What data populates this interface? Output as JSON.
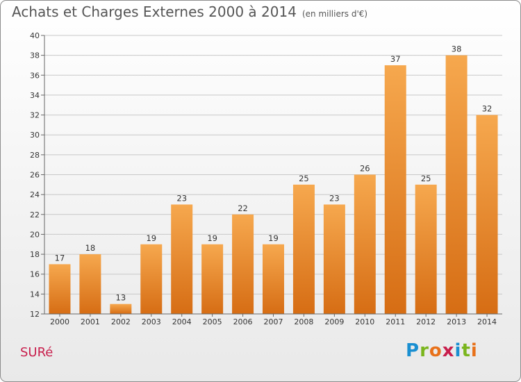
{
  "title": "Achats et Charges Externes 2000 à 2014",
  "subtitle": "(en milliers d'€)",
  "place": "SURé",
  "logo": [
    "P",
    "r",
    "o",
    "x",
    "i",
    "t",
    "i"
  ],
  "logo_colors": [
    "#1a8fd1",
    "#7ab51d",
    "#e8711a",
    "#c81e4c",
    "#1a8fd1",
    "#7ab51d",
    "#e8711a"
  ],
  "colors": {
    "bar_light": "#f6a84e",
    "bar_dark": "#d66d14",
    "grid": "#c8c8c8",
    "place": "#c81e4c"
  },
  "chart_data": {
    "type": "bar",
    "categories": [
      "2000",
      "2001",
      "2002",
      "2003",
      "2004",
      "2005",
      "2006",
      "2007",
      "2008",
      "2009",
      "2010",
      "2011",
      "2012",
      "2013",
      "2014"
    ],
    "values": [
      17,
      18,
      13,
      19,
      23,
      19,
      22,
      19,
      25,
      23,
      26,
      37,
      25,
      38,
      32
    ],
    "ylim": [
      12,
      40
    ],
    "yticks": [
      12,
      14,
      16,
      18,
      20,
      22,
      24,
      26,
      28,
      30,
      32,
      34,
      36,
      38,
      40
    ],
    "grid": true
  }
}
